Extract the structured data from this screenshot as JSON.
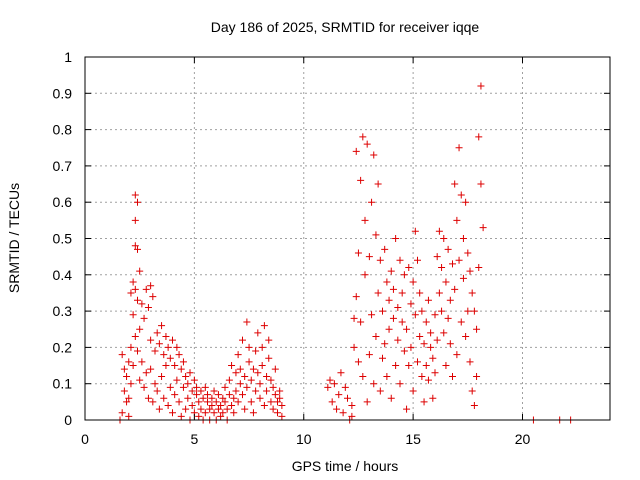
{
  "chart_data": {
    "type": "scatter",
    "title": "Day 186 of 2025, SRMTID for receiver iqqe",
    "xlabel": "GPS time / hours",
    "ylabel": "SRMTID / TECUs",
    "xlim": [
      0,
      24
    ],
    "ylim": [
      0,
      1
    ],
    "xticks": [
      0,
      5,
      10,
      15,
      20
    ],
    "xtick_labels": [
      "0",
      "5",
      "10",
      "15",
      "20"
    ],
    "yticks": [
      0,
      0.1,
      0.2,
      0.3,
      0.4,
      0.5,
      0.6,
      0.7,
      0.8,
      0.9,
      1
    ],
    "ytick_labels": [
      "0",
      "0.1",
      "0.2",
      "0.3",
      "0.4",
      "0.5",
      "0.6",
      "0.7",
      "0.8",
      "0.9",
      "1"
    ],
    "grid": true,
    "marker": "plus",
    "color": "#dd0000",
    "series": [
      {
        "name": "SRMTID",
        "x": [
          1.6,
          1.7,
          1.7,
          1.8,
          1.8,
          1.9,
          1.9,
          2.0,
          2.0,
          2.0,
          2.1,
          2.1,
          2.1,
          2.2,
          2.2,
          2.2,
          2.3,
          2.3,
          2.3,
          2.3,
          2.3,
          2.4,
          2.4,
          2.4,
          2.4,
          2.5,
          2.5,
          2.5,
          2.6,
          2.6,
          2.7,
          2.7,
          2.8,
          2.8,
          2.9,
          2.9,
          3.0,
          3.0,
          3.0,
          3.1,
          3.1,
          3.2,
          3.2,
          3.3,
          3.3,
          3.4,
          3.4,
          3.5,
          3.5,
          3.6,
          3.6,
          3.7,
          3.7,
          3.8,
          3.8,
          3.9,
          3.9,
          4.0,
          4.0,
          4.1,
          4.1,
          4.2,
          4.2,
          4.3,
          4.3,
          4.4,
          4.4,
          4.5,
          4.5,
          4.6,
          4.6,
          4.7,
          4.7,
          4.8,
          4.8,
          4.9,
          4.9,
          5.0,
          5.0,
          5.1,
          5.1,
          5.2,
          5.2,
          5.3,
          5.3,
          5.4,
          5.4,
          5.5,
          5.5,
          5.6,
          5.6,
          5.7,
          5.7,
          5.8,
          5.8,
          5.9,
          5.9,
          6.0,
          6.0,
          6.1,
          6.1,
          6.2,
          6.2,
          6.3,
          6.3,
          6.4,
          6.4,
          6.5,
          6.5,
          6.6,
          6.6,
          6.7,
          6.7,
          6.8,
          6.8,
          6.9,
          6.9,
          7.0,
          7.0,
          7.1,
          7.1,
          7.2,
          7.2,
          7.3,
          7.3,
          7.4,
          7.4,
          7.5,
          7.5,
          7.6,
          7.6,
          7.7,
          7.7,
          7.8,
          7.8,
          7.9,
          7.9,
          8.0,
          8.0,
          8.1,
          8.1,
          8.2,
          8.2,
          8.3,
          8.3,
          8.4,
          8.4,
          8.5,
          8.5,
          8.6,
          8.6,
          8.7,
          8.7,
          8.8,
          8.8,
          8.9,
          8.9,
          9.0,
          9.0,
          11.1,
          11.2,
          11.3,
          11.4,
          11.5,
          11.6,
          11.7,
          11.8,
          11.9,
          12.0,
          12.1,
          12.2,
          12.2,
          12.3,
          12.3,
          12.4,
          12.4,
          12.5,
          12.5,
          12.6,
          12.6,
          12.7,
          12.7,
          12.8,
          12.8,
          12.9,
          12.9,
          13.0,
          13.0,
          13.1,
          13.1,
          13.2,
          13.2,
          13.3,
          13.3,
          13.4,
          13.4,
          13.5,
          13.5,
          13.6,
          13.6,
          13.7,
          13.7,
          13.8,
          13.8,
          13.9,
          13.9,
          14.0,
          14.0,
          14.1,
          14.1,
          14.2,
          14.2,
          14.3,
          14.3,
          14.4,
          14.4,
          14.5,
          14.5,
          14.6,
          14.6,
          14.7,
          14.7,
          14.8,
          14.8,
          14.9,
          14.9,
          15.0,
          15.0,
          15.1,
          15.1,
          15.2,
          15.2,
          15.3,
          15.3,
          15.4,
          15.4,
          15.5,
          15.5,
          15.6,
          15.6,
          15.7,
          15.7,
          15.8,
          15.8,
          15.9,
          15.9,
          16.0,
          16.0,
          16.1,
          16.1,
          16.2,
          16.2,
          16.3,
          16.3,
          16.4,
          16.4,
          16.5,
          16.5,
          16.6,
          16.6,
          16.7,
          16.7,
          16.8,
          16.8,
          16.9,
          16.9,
          17.0,
          17.0,
          17.1,
          17.1,
          17.2,
          17.2,
          17.3,
          17.3,
          17.4,
          17.4,
          17.5,
          17.5,
          17.6,
          17.6,
          17.7,
          17.7,
          17.8,
          17.8,
          17.9,
          17.9,
          18.0,
          18.0,
          18.1,
          18.1,
          18.2,
          20.5,
          21.7,
          22.2
        ],
        "y": [
          0.0,
          0.18,
          0.02,
          0.14,
          0.08,
          0.05,
          0.12,
          0.16,
          0.01,
          0.06,
          0.35,
          0.2,
          0.1,
          0.38,
          0.29,
          0.15,
          0.62,
          0.48,
          0.55,
          0.36,
          0.23,
          0.6,
          0.47,
          0.33,
          0.19,
          0.41,
          0.25,
          0.11,
          0.32,
          0.16,
          0.28,
          0.09,
          0.36,
          0.13,
          0.31,
          0.06,
          0.37,
          0.22,
          0.14,
          0.34,
          0.05,
          0.19,
          0.1,
          0.24,
          0.08,
          0.21,
          0.03,
          0.26,
          0.12,
          0.18,
          0.06,
          0.23,
          0.15,
          0.2,
          0.04,
          0.17,
          0.09,
          0.22,
          0.02,
          0.15,
          0.07,
          0.2,
          0.11,
          0.18,
          0.05,
          0.14,
          0.01,
          0.16,
          0.09,
          0.12,
          0.03,
          0.1,
          0.06,
          0.13,
          0.0,
          0.08,
          0.04,
          0.11,
          0.02,
          0.07,
          0.09,
          0.05,
          0.01,
          0.08,
          0.03,
          0.06,
          0.0,
          0.09,
          0.02,
          0.05,
          0.07,
          0.03,
          0.0,
          0.06,
          0.04,
          0.02,
          0.08,
          0.05,
          0.0,
          0.03,
          0.07,
          0.04,
          0.01,
          0.06,
          0.02,
          0.05,
          0.09,
          0.03,
          0.0,
          0.07,
          0.11,
          0.04,
          0.15,
          0.06,
          0.02,
          0.13,
          0.08,
          0.18,
          0.05,
          0.1,
          0.14,
          0.22,
          0.07,
          0.12,
          0.03,
          0.27,
          0.09,
          0.16,
          0.2,
          0.05,
          0.11,
          0.14,
          0.02,
          0.19,
          0.08,
          0.13,
          0.24,
          0.06,
          0.1,
          0.2,
          0.15,
          0.26,
          0.04,
          0.12,
          0.08,
          0.22,
          0.17,
          0.05,
          0.11,
          0.09,
          0.03,
          0.07,
          0.14,
          0.05,
          0.02,
          0.08,
          0.06,
          0.01,
          0.04,
          0.09,
          0.11,
          0.05,
          0.1,
          0.03,
          0.07,
          0.13,
          0.02,
          0.09,
          0.06,
          0.0,
          0.04,
          0.01,
          0.2,
          0.28,
          0.74,
          0.34,
          0.46,
          0.16,
          0.66,
          0.27,
          0.12,
          0.78,
          0.55,
          0.4,
          0.05,
          0.76,
          0.18,
          0.45,
          0.29,
          0.6,
          0.1,
          0.73,
          0.23,
          0.51,
          0.35,
          0.65,
          0.08,
          0.44,
          0.17,
          0.3,
          0.47,
          0.21,
          0.38,
          0.12,
          0.33,
          0.25,
          0.41,
          0.06,
          0.28,
          0.36,
          0.15,
          0.5,
          0.22,
          0.31,
          0.44,
          0.1,
          0.35,
          0.27,
          0.19,
          0.4,
          0.03,
          0.25,
          0.42,
          0.15,
          0.32,
          0.2,
          0.38,
          0.08,
          0.52,
          0.29,
          0.44,
          0.16,
          0.35,
          0.23,
          0.12,
          0.3,
          0.21,
          0.05,
          0.27,
          0.15,
          0.33,
          0.11,
          0.24,
          0.2,
          0.17,
          0.06,
          0.13,
          0.29,
          0.45,
          0.22,
          0.52,
          0.35,
          0.3,
          0.42,
          0.24,
          0.5,
          0.38,
          0.15,
          0.47,
          0.28,
          0.33,
          0.21,
          0.43,
          0.12,
          0.36,
          0.65,
          0.55,
          0.18,
          0.75,
          0.44,
          0.62,
          0.27,
          0.5,
          0.39,
          0.6,
          0.23,
          0.46,
          0.3,
          0.41,
          0.16,
          0.35,
          0.08,
          0.3,
          0.04,
          0.25,
          0.12,
          0.42,
          0.78,
          0.65,
          0.92,
          0.53,
          0.0,
          0.0,
          0.0
        ]
      }
    ]
  }
}
